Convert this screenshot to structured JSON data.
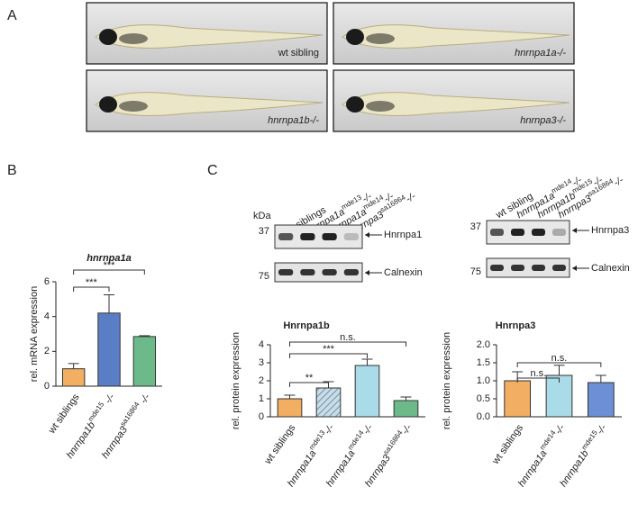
{
  "panel_a": {
    "label": "A",
    "fish": [
      "wt sibling",
      "hnrnpa1a-/-",
      "hnrnpa1b-/-",
      "hnrnpa3-/-"
    ]
  },
  "panel_b": {
    "label": "B"
  },
  "panel_c": {
    "label": "C",
    "blots": [
      {
        "kda": "kDa",
        "markers": [
          "37",
          "75"
        ],
        "proteins": [
          "Hnrnpa1",
          "Calnexin"
        ],
        "lanes": [
          {
            "name": "wt siblings"
          },
          {
            "name": "hnrnpa1a",
            "sup": "mde13",
            "tail": "-/-"
          },
          {
            "name": "hnrnpa1a",
            "sup": "mde14",
            "tail": "-/-"
          },
          {
            "name": "hnrnpa3",
            "sup": "sa16864",
            "tail": "-/-"
          }
        ]
      },
      {
        "markers": [
          "37",
          "75"
        ],
        "proteins": [
          "Hnrnpa3",
          "Calnexin"
        ],
        "lanes": [
          {
            "name": "wt sibling"
          },
          {
            "name": "hnrnpa1a",
            "sup": "mde14",
            "tail": "-/-"
          },
          {
            "name": "hnrnpa1b",
            "sup": "mde15",
            "tail": "-/-"
          },
          {
            "name": "hnrnpa3",
            "sup": "sa16864",
            "tail": "-/-"
          }
        ]
      }
    ]
  },
  "chart_data": [
    {
      "type": "bar",
      "title": "hnrnpa1a",
      "ylabel": "rel. mRNA expression",
      "categories": [
        {
          "name": "wt siblings"
        },
        {
          "name": "hnrnpa1b",
          "sup": "mde15",
          "tail": " -/-"
        },
        {
          "name": "hnrnpa3",
          "sup": "sa16864",
          "tail": " -/-"
        }
      ],
      "values": [
        1.0,
        4.2,
        2.85
      ],
      "errors": [
        0.3,
        1.05,
        0.05
      ],
      "colors": [
        "#f2ae62",
        "#5a7ec6",
        "#6cba8a"
      ],
      "ylim": [
        0,
        6
      ],
      "yticks": [
        0,
        2,
        4,
        6
      ],
      "annotations": [
        "***",
        "***"
      ]
    },
    {
      "type": "bar",
      "title": "Hnrnpa1b",
      "ylabel": "rel. protein expression",
      "categories": [
        {
          "name": "wt siblings"
        },
        {
          "name": "hnrnpa1a",
          "sup": "mde13",
          "tail": "-/-"
        },
        {
          "name": "hnrnpa1a",
          "sup": "mde14",
          "tail": "-/-"
        },
        {
          "name": "hnrnpa3",
          "sup": "sa16864",
          "tail": "-/-"
        }
      ],
      "values": [
        1.0,
        1.6,
        2.85,
        0.9
      ],
      "errors": [
        0.2,
        0.35,
        0.35,
        0.2
      ],
      "colors": [
        "#f2ae62",
        "#a9c6d6",
        "#a9dbe8",
        "#6cba8a"
      ],
      "hatched": [
        false,
        true,
        false,
        false
      ],
      "ylim": [
        0,
        4
      ],
      "yticks": [
        0,
        1,
        2,
        3,
        4
      ],
      "annotations": [
        "**",
        "***",
        "n.s."
      ]
    },
    {
      "type": "bar",
      "title": "Hnrnpa3",
      "ylabel": "rel. protein expression",
      "categories": [
        {
          "name": "wt siblings"
        },
        {
          "name": "hnrnpa1a",
          "sup": "mde14",
          "tail": "-/-"
        },
        {
          "name": "hnrnpa1b",
          "sup": "mde15",
          "tail": "-/-"
        }
      ],
      "values": [
        1.0,
        1.15,
        0.95
      ],
      "errors": [
        0.25,
        0.28,
        0.2
      ],
      "colors": [
        "#f2ae62",
        "#a9dbe8",
        "#6d8fd6"
      ],
      "ylim": [
        0,
        2
      ],
      "yticks": [
        {
          "value": 0,
          "label": "0.0"
        },
        {
          "value": 0.5,
          "label": "0.5"
        },
        {
          "value": 1,
          "label": "1.0"
        },
        {
          "value": 1.5,
          "label": "1.5"
        },
        {
          "value": 2,
          "label": "2.0"
        }
      ],
      "annotations": [
        "n.s.",
        "n.s."
      ]
    }
  ]
}
